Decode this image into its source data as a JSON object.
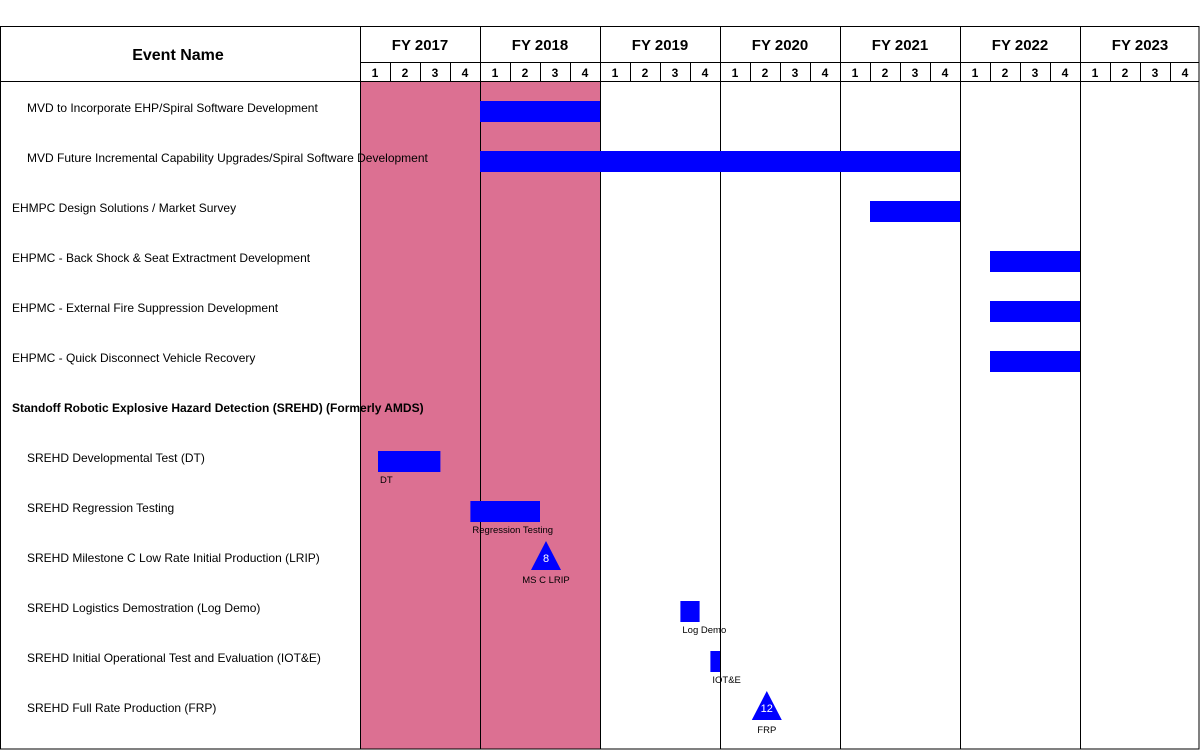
{
  "chart_data": {
    "type": "gantt",
    "header": {
      "event_column": "Event Name"
    },
    "fiscal_years": [
      "FY 2017",
      "FY 2018",
      "FY 2019",
      "FY 2020",
      "FY 2021",
      "FY 2022",
      "FY 2023"
    ],
    "quarters": [
      "1",
      "2",
      "3",
      "4"
    ],
    "shaded_years": [
      "FY 2017",
      "FY 2018"
    ],
    "colors": {
      "shade": "#dc7092",
      "bar": "#0000ff",
      "milestone": "#0000ff",
      "grid": "#000000"
    },
    "events": [
      {
        "name": "MVD to Incorporate EHP/Spiral Software Development",
        "indent": true,
        "bold": false,
        "bars": [
          {
            "start": 2018.0,
            "end": 2019.0
          }
        ]
      },
      {
        "name": "MVD Future Incremental Capability Upgrades/Spiral Software Development",
        "indent": true,
        "bold": false,
        "bars": [
          {
            "start": 2018.0,
            "end": 2022.0
          }
        ]
      },
      {
        "name": "EHMPC Design Solutions / Market Survey",
        "indent": false,
        "bold": false,
        "bars": [
          {
            "start": 2021.25,
            "end": 2022.0
          }
        ]
      },
      {
        "name": "EHPMC - Back Shock & Seat Extractment Development",
        "indent": false,
        "bold": false,
        "bars": [
          {
            "start": 2022.25,
            "end": 2023.0
          }
        ]
      },
      {
        "name": "EHPMC - External Fire Suppression Development",
        "indent": false,
        "bold": false,
        "bars": [
          {
            "start": 2022.25,
            "end": 2023.0
          }
        ]
      },
      {
        "name": "EHPMC - Quick Disconnect Vehicle Recovery",
        "indent": false,
        "bold": false,
        "bars": [
          {
            "start": 2022.25,
            "end": 2023.0
          }
        ]
      },
      {
        "name": "Standoff Robotic Explosive Hazard Detection (SREHD) (Formerly AMDS)",
        "indent": false,
        "bold": true,
        "bars": []
      },
      {
        "name": "SREHD Developmental Test (DT)",
        "indent": true,
        "bold": false,
        "bars": [
          {
            "start": 2017.15,
            "end": 2017.67,
            "label": "DT"
          }
        ]
      },
      {
        "name": "SREHD Regression Testing",
        "indent": true,
        "bold": false,
        "bars": [
          {
            "start": 2017.92,
            "end": 2018.5,
            "label": "Regression Testing"
          }
        ]
      },
      {
        "name": "SREHD Milestone C Low Rate Initial Production (LRIP)",
        "indent": true,
        "bold": false,
        "milestone": {
          "date": 2018.55,
          "number": "8",
          "label": "MS C LRIP"
        }
      },
      {
        "name": "SREHD Logistics Demostration (Log Demo)",
        "indent": true,
        "bold": false,
        "bars": [
          {
            "start": 2019.67,
            "end": 2019.83,
            "label": "Log Demo"
          }
        ]
      },
      {
        "name": "SREHD Initial Operational Test and Evaluation (IOT&E)",
        "indent": true,
        "bold": false,
        "bars": [
          {
            "start": 2019.92,
            "end": 2020.0,
            "label": "IOT&E"
          }
        ]
      },
      {
        "name": "SREHD Full Rate Production (FRP)",
        "indent": true,
        "bold": false,
        "milestone": {
          "date": 2020.39,
          "number": "12",
          "label": "FRP"
        }
      }
    ]
  }
}
